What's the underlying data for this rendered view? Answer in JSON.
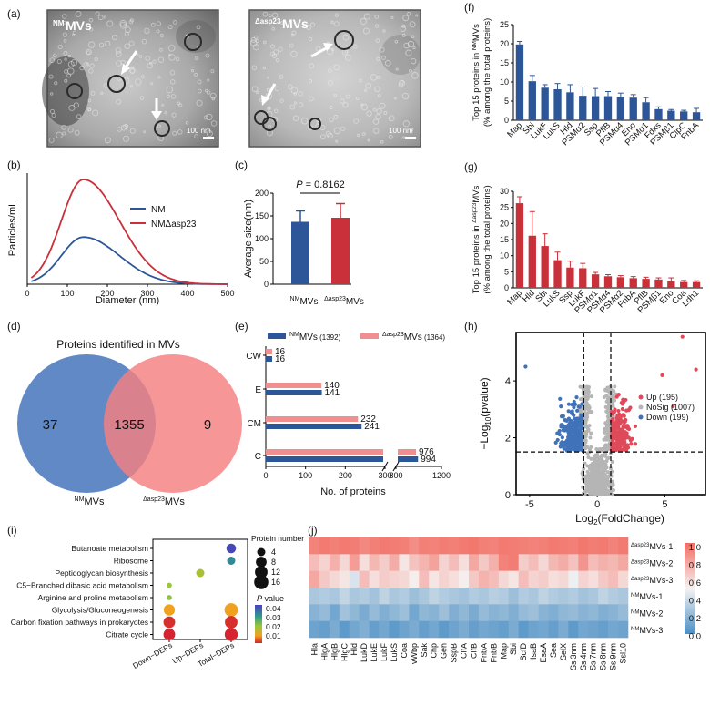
{
  "panels": {
    "a": "(a)",
    "b": "(b)",
    "c": "(c)",
    "d": "(d)",
    "e": "(e)",
    "f": "(f)",
    "g": "(g)",
    "h": "(h)",
    "i": "(i)",
    "j": "(j)"
  },
  "micrographs": {
    "left": {
      "sup": "NM",
      "label": "MVs",
      "scale": "100 nm"
    },
    "right": {
      "sup": "Δasp23",
      "label": "MVs",
      "scale": "100 nm"
    }
  },
  "colors": {
    "blue": "#2c5697",
    "red": "#c9303a",
    "lightblue": "#6d8fc4",
    "pink": "#f08f8f"
  },
  "chart_data": [
    {
      "id": "b",
      "type": "line",
      "xlabel": "Diameter (nm)",
      "ylabel": "Particles/mL",
      "xlim": [
        0,
        500
      ],
      "xticks": [
        0,
        100,
        200,
        300,
        400,
        500
      ],
      "series": [
        {
          "name": "NM",
          "peak_x": 140,
          "peak_rel": 0.45
        },
        {
          "name": "NMΔasp23",
          "name_italic_part": "asp23",
          "peak_x": 140,
          "peak_rel": 1.0
        }
      ]
    },
    {
      "id": "c",
      "type": "bar",
      "ylabel": "Average size(nm)",
      "ylim": [
        0,
        200
      ],
      "yticks": [
        0,
        50,
        100,
        150,
        200
      ],
      "categories": [
        {
          "sup": "NM",
          "label": "MVs"
        },
        {
          "sup": "Δasp23",
          "label": "MVs"
        }
      ],
      "values": [
        137,
        146
      ],
      "errors": [
        24,
        31
      ],
      "annotation": {
        "p_label": "P",
        "text": " = 0.8162"
      }
    },
    {
      "id": "d",
      "type": "venn",
      "title": "Proteins identified in MVs",
      "left_only": "37",
      "shared": "1355",
      "right_only": "9",
      "labels": [
        {
          "sup": "NM",
          "label": "MVs"
        },
        {
          "sup": "Δasp23",
          "label": "MVs"
        }
      ]
    },
    {
      "id": "e",
      "type": "bar",
      "orientation": "horizontal",
      "legend": [
        {
          "sup": "NM",
          "label": "MVs",
          "count": "(1392)"
        },
        {
          "sup": "Δasp23",
          "label": "MVs",
          "count": "(1364)"
        }
      ],
      "categories": [
        "CW",
        "E",
        "CM",
        "C"
      ],
      "series": [
        {
          "name": "ΔMVs",
          "values": [
            16,
            140,
            232,
            976
          ]
        },
        {
          "name": "NMMVs",
          "values": [
            16,
            141,
            241,
            994
          ]
        }
      ],
      "value_labels_red": [
        "16",
        "140",
        "232",
        "976"
      ],
      "value_labels_blue": [
        "16",
        "141",
        "241",
        "994"
      ],
      "xticks_left": [
        "0",
        "100",
        "200",
        "300"
      ],
      "xticks_right": [
        "800",
        "1200"
      ],
      "xlabel": "No. of proteins"
    },
    {
      "id": "f",
      "type": "bar",
      "ylabel_line1": "Top 15 proteins in",
      "ylabel_sup": "NM",
      "ylabel_tail": "MVs",
      "ylabel_line2": "(% among the total proteins)",
      "ylim": [
        0,
        25
      ],
      "yticks": [
        0,
        5,
        10,
        15,
        20,
        25
      ],
      "categories": [
        "Map",
        "Sbi",
        "LukF",
        "LukS",
        "Hld",
        "PSMα2",
        "Ssp",
        "PflB",
        "PSMα4",
        "Eno",
        "PSMα1",
        "Fdxs",
        "PSMβ1",
        "ClpC",
        "FnbA"
      ],
      "values": [
        19.8,
        10.2,
        8.5,
        8.1,
        7.3,
        6.4,
        6.3,
        6.3,
        6.1,
        5.9,
        4.7,
        2.9,
        2.5,
        2.3,
        2.1
      ],
      "errors": [
        0.8,
        1.5,
        0.8,
        1.5,
        2.0,
        2.3,
        2.0,
        1.2,
        1.0,
        0.8,
        1.2,
        0.6,
        0.3,
        0.3,
        1.0
      ]
    },
    {
      "id": "g",
      "type": "bar",
      "ylabel_line1": "Top 15 proteins in",
      "ylabel_sup": "Δasp23",
      "ylabel_tail": "MVs",
      "ylabel_line2": "(% among the total proteins)",
      "ylim": [
        0,
        30
      ],
      "yticks": [
        0,
        5,
        10,
        15,
        20,
        25,
        30
      ],
      "categories": [
        "Map",
        "Hld",
        "Sbi",
        "LukS",
        "Ssp",
        "LukF",
        "PSMα1",
        "PSMα4",
        "PSMα2",
        "FnbA",
        "PflB",
        "PSMβ1",
        "Eno",
        "Coa",
        "Ldh1"
      ],
      "values": [
        26.3,
        16.2,
        13.0,
        8.6,
        6.3,
        6.1,
        4.2,
        3.6,
        3.3,
        3.0,
        2.8,
        2.6,
        2.1,
        1.8,
        1.8
      ],
      "errors": [
        2.0,
        7.5,
        3.8,
        2.5,
        2.0,
        1.5,
        0.6,
        0.5,
        0.5,
        0.5,
        0.5,
        0.5,
        1.0,
        0.5,
        0.4
      ]
    },
    {
      "id": "h",
      "type": "scatter",
      "xlabel_pre": "Log",
      "xlabel_sub": "2",
      "xlabel_post": "(FoldChange)",
      "ylabel_pre": "−Log",
      "ylabel_sub": "10",
      "ylabel_post": "(pvalue)",
      "xlim": [
        -6,
        8
      ],
      "ylim": [
        0,
        5.7
      ],
      "xticks": [
        -5,
        0,
        5
      ],
      "yticks": [
        0,
        2,
        4
      ],
      "legend": [
        "Up (195)",
        "NoSig (1007)",
        "Down (199)"
      ],
      "thresholds": {
        "x": [
          -1,
          1
        ],
        "y": 1.5
      }
    },
    {
      "id": "i",
      "type": "scatter",
      "subtype": "bubble",
      "pathways": [
        "Butanoate metabolism",
        "Ribosome",
        "Peptidoglycan biosynthesis",
        "C5−Branched dibasic acid metabolism",
        "Arginine and proline metabolism",
        "Glycolysis/Gluconeogenesis",
        "Carbon fixation pathways in prokaryotes",
        "Citrate cycle"
      ],
      "groups": [
        "Down−DEPs",
        "Up−DEPs",
        "Total−DEPs"
      ],
      "points": [
        {
          "pathway": 0,
          "group": 2,
          "size": 6,
          "p": 0.045
        },
        {
          "pathway": 1,
          "group": 2,
          "size": 4,
          "p": 0.038
        },
        {
          "pathway": 2,
          "group": 1,
          "size": 4,
          "p": 0.022
        },
        {
          "pathway": 3,
          "group": 0,
          "size": 1,
          "p": 0.024
        },
        {
          "pathway": 4,
          "group": 0,
          "size": 1,
          "p": 0.025
        },
        {
          "pathway": 5,
          "group": 0,
          "size": 9,
          "p": 0.013
        },
        {
          "pathway": 5,
          "group": 2,
          "size": 14,
          "p": 0.013
        },
        {
          "pathway": 6,
          "group": 0,
          "size": 10,
          "p": 0.003
        },
        {
          "pathway": 6,
          "group": 2,
          "size": 12,
          "p": 0.003
        },
        {
          "pathway": 7,
          "group": 0,
          "size": 10,
          "p": 0.002
        },
        {
          "pathway": 7,
          "group": 2,
          "size": 13,
          "p": 0.002
        }
      ],
      "size_legend_title": "Protein number",
      "size_legend": [
        "4",
        "8",
        "12",
        "16"
      ],
      "color_legend_title": "P",
      "color_legend_title_tail": " value",
      "color_legend": [
        "0.04",
        "0.03",
        "0.02",
        "0.01"
      ]
    },
    {
      "id": "j",
      "type": "heatmap",
      "columns": [
        "Hla",
        "HlgA",
        "HlgB",
        "HlgC",
        "Hld",
        "LukD",
        "LukE",
        "LukF",
        "LukS",
        "Coa",
        "vWbp",
        "Sak",
        "Chp",
        "Geh",
        "SspB",
        "ClfA",
        "ClfB",
        "FnbA",
        "FnbB",
        "Map",
        "Sbi",
        "ScfD",
        "IsaB",
        "EsaA",
        "Sea",
        "SelX",
        "Ssl3nm",
        "Ssl4nm",
        "Ssl7nm",
        "Ssl8nm",
        "Ssl9nm",
        "Ssl10"
      ],
      "rows": [
        {
          "sup": "Δasp23",
          "label": "MVs-1"
        },
        {
          "sup": "Δasp23",
          "label": "MVs-2"
        },
        {
          "sup": "Δasp23",
          "label": "MVs-3"
        },
        {
          "sup": "NM",
          "label": "MVs-1"
        },
        {
          "sup": "NM",
          "label": "MVs-2"
        },
        {
          "sup": "NM",
          "label": "MVs-3"
        }
      ],
      "colorbar_ticks": [
        "1.0",
        "0.8",
        "0.6",
        "0.4",
        "0.2",
        "0.0"
      ],
      "values": [
        [
          0.92,
          0.95,
          0.93,
          0.95,
          0.94,
          0.9,
          0.93,
          0.95,
          0.94,
          0.93,
          0.88,
          0.93,
          0.92,
          0.94,
          0.93,
          0.95,
          0.96,
          0.93,
          0.92,
          0.95,
          0.94,
          0.93,
          0.92,
          0.93,
          0.95,
          0.94,
          0.93,
          0.96,
          0.94,
          0.95,
          0.92,
          0.95
        ],
        [
          0.7,
          0.62,
          0.75,
          0.6,
          0.82,
          0.58,
          0.72,
          0.64,
          0.76,
          0.55,
          0.68,
          0.73,
          0.8,
          0.62,
          0.7,
          0.58,
          0.78,
          0.66,
          0.75,
          0.92,
          0.94,
          0.64,
          0.7,
          0.6,
          0.72,
          0.76,
          0.68,
          0.85,
          0.7,
          0.75,
          0.72,
          0.78
        ],
        [
          0.78,
          0.66,
          0.6,
          0.55,
          0.42,
          0.7,
          0.58,
          0.64,
          0.62,
          0.6,
          0.52,
          0.7,
          0.55,
          0.62,
          0.58,
          0.52,
          0.66,
          0.74,
          0.7,
          0.6,
          0.55,
          0.7,
          0.62,
          0.64,
          0.58,
          0.6,
          0.48,
          0.62,
          0.58,
          0.66,
          0.7,
          0.6
        ],
        [
          0.28,
          0.3,
          0.28,
          0.35,
          0.28,
          0.3,
          0.26,
          0.34,
          0.28,
          0.3,
          0.24,
          0.28,
          0.34,
          0.3,
          0.28,
          0.26,
          0.3,
          0.28,
          0.32,
          0.3,
          0.24,
          0.3,
          0.28,
          0.34,
          0.3,
          0.28,
          0.3,
          0.26,
          0.28,
          0.34,
          0.3,
          0.28
        ],
        [
          0.18,
          0.22,
          0.12,
          0.26,
          0.2,
          0.14,
          0.22,
          0.16,
          0.2,
          0.24,
          0.12,
          0.2,
          0.18,
          0.24,
          0.16,
          0.2,
          0.14,
          0.22,
          0.18,
          0.2,
          0.16,
          0.22,
          0.24,
          0.18,
          0.16,
          0.2,
          0.22,
          0.18,
          0.2,
          0.16,
          0.18,
          0.22
        ],
        [
          0.1,
          0.08,
          0.14,
          0.06,
          0.12,
          0.16,
          0.08,
          0.12,
          0.06,
          0.1,
          0.14,
          0.08,
          0.12,
          0.06,
          0.1,
          0.14,
          0.08,
          0.12,
          0.1,
          0.08,
          0.14,
          0.06,
          0.1,
          0.12,
          0.08,
          0.14,
          0.06,
          0.12,
          0.1,
          0.08,
          0.12,
          0.1
        ]
      ]
    }
  ]
}
